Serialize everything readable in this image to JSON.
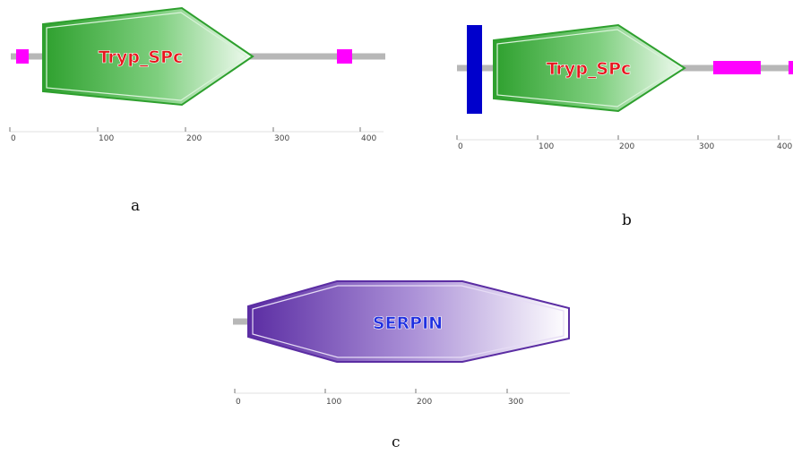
{
  "panels": {
    "a": {
      "caption": "a",
      "domain_label": "Tryp_SPc",
      "domain_color": "#2ea02e",
      "label_color": "#e8161e",
      "feature_color": "#ff00ff",
      "ticks": [
        "0",
        "100",
        "200",
        "300",
        "400"
      ]
    },
    "b": {
      "caption": "b",
      "domain_label": "Tryp_SPc",
      "domain_color": "#2ea02e",
      "label_color": "#e8161e",
      "feature_color": "#ff00ff",
      "signal_color": "#0000cc",
      "ticks": [
        "0",
        "100",
        "200",
        "300",
        "400"
      ]
    },
    "c": {
      "caption": "c",
      "domain_label": "SERPIN",
      "domain_color": "#5b2da3",
      "label_color": "#1f2fe0",
      "ticks": [
        "0",
        "100",
        "200",
        "300"
      ]
    }
  }
}
